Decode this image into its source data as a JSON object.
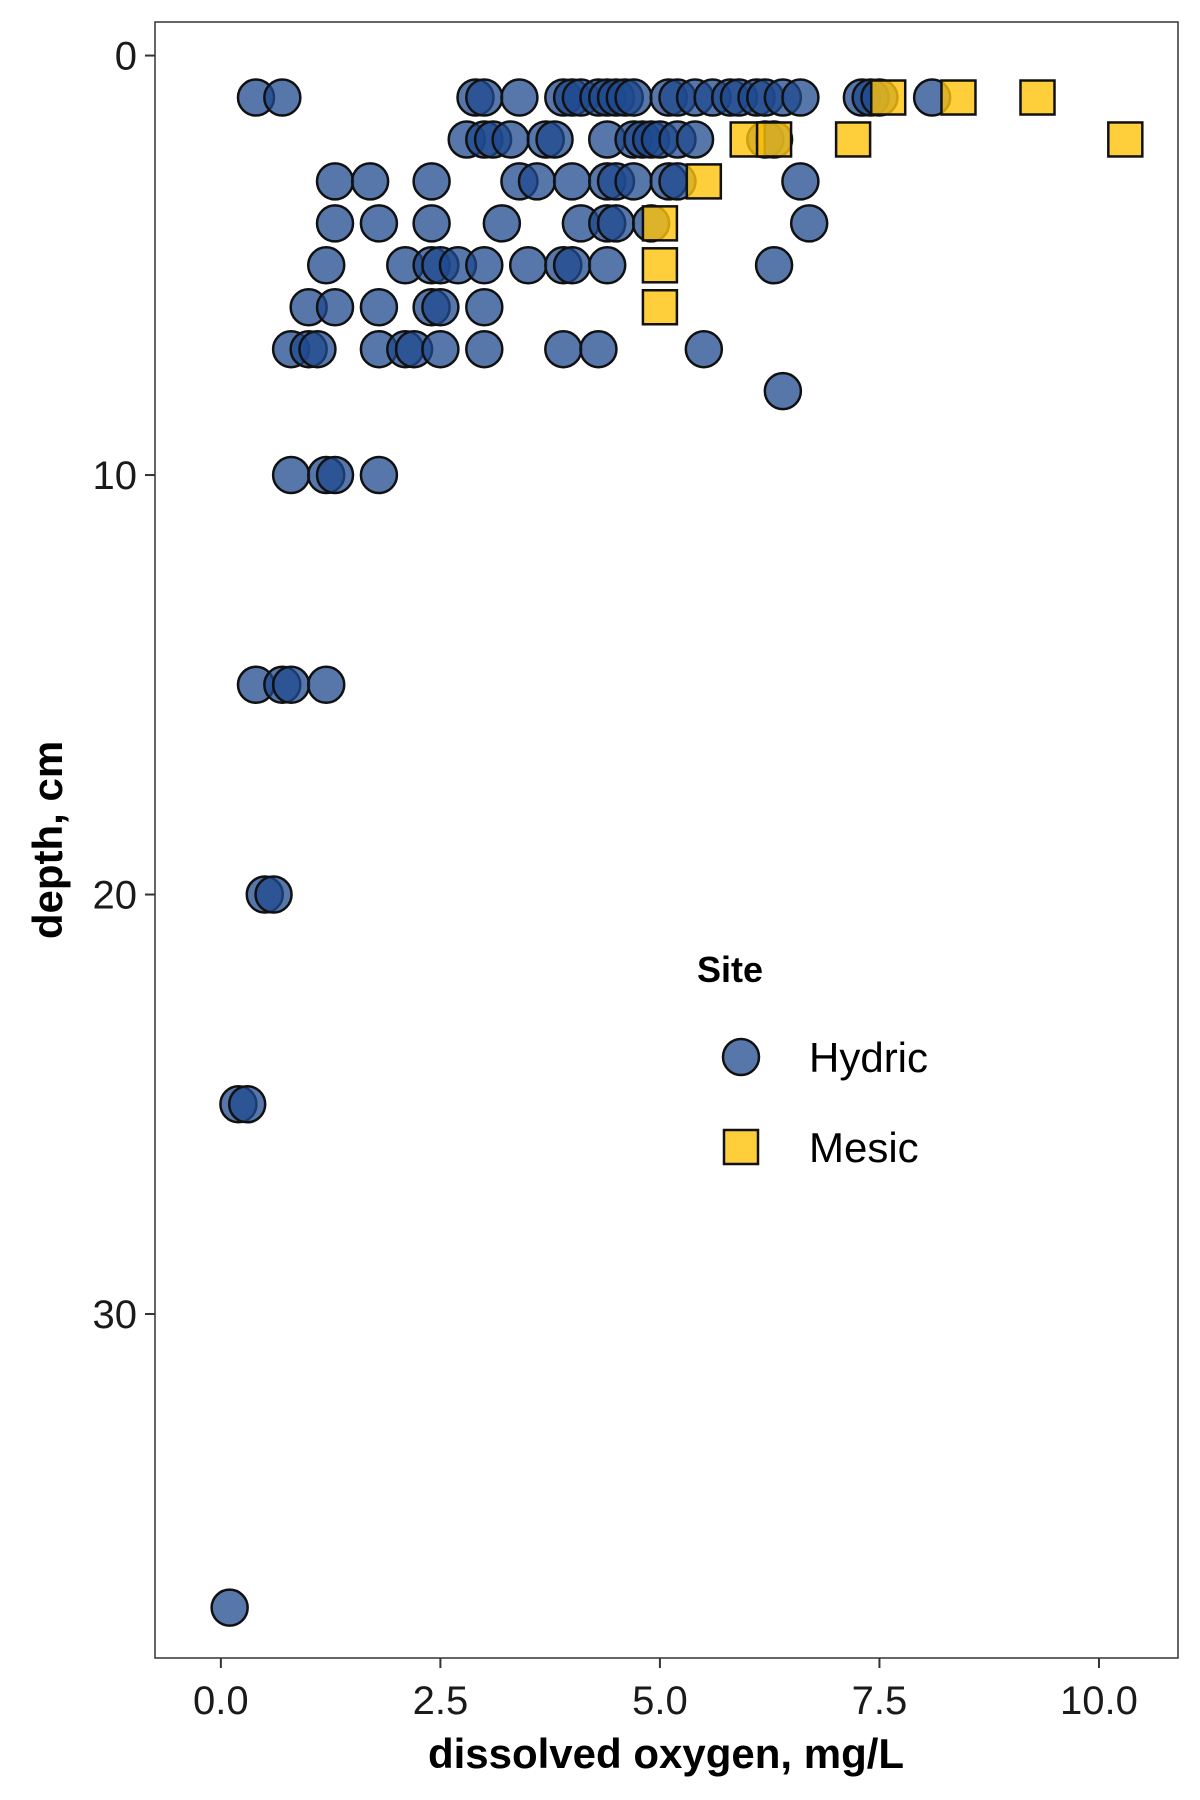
{
  "chart_data": {
    "type": "scatter",
    "title": "",
    "xlabel": "dissolved oxygen, mg/L",
    "ylabel": "depth, cm",
    "xlim": [
      -0.75,
      10.9
    ],
    "ylim": [
      -0.8,
      38.2
    ],
    "y_reversed": true,
    "x_ticks": [
      0,
      2.5,
      5,
      7.5,
      10
    ],
    "x_tick_labels": [
      "0.0",
      "2.5",
      "5.0",
      "7.5",
      "10.0"
    ],
    "y_ticks": [
      0,
      10,
      20,
      30
    ],
    "y_tick_labels": [
      "0",
      "10",
      "20",
      "30"
    ],
    "grid": false,
    "legend": {
      "title": "Site",
      "position": "right-center inside"
    },
    "series": [
      {
        "name": "Hydric",
        "marker": "circle",
        "color": "#1F4A8F",
        "points": [
          [
            0.4,
            1
          ],
          [
            0.7,
            1
          ],
          [
            2.9,
            1
          ],
          [
            3.0,
            1
          ],
          [
            3.4,
            1
          ],
          [
            3.9,
            1
          ],
          [
            4.0,
            1
          ],
          [
            4.1,
            1
          ],
          [
            4.3,
            1
          ],
          [
            4.4,
            1
          ],
          [
            4.5,
            1
          ],
          [
            4.6,
            1
          ],
          [
            4.7,
            1
          ],
          [
            5.1,
            1
          ],
          [
            5.2,
            1
          ],
          [
            5.4,
            1
          ],
          [
            5.6,
            1
          ],
          [
            5.8,
            1
          ],
          [
            5.9,
            1
          ],
          [
            6.1,
            1
          ],
          [
            6.2,
            1
          ],
          [
            6.4,
            1
          ],
          [
            6.6,
            1
          ],
          [
            7.3,
            1
          ],
          [
            7.4,
            1
          ],
          [
            7.5,
            1
          ],
          [
            8.1,
            1
          ],
          [
            2.8,
            2
          ],
          [
            3.0,
            2
          ],
          [
            3.1,
            2
          ],
          [
            3.3,
            2
          ],
          [
            3.7,
            2
          ],
          [
            3.8,
            2
          ],
          [
            4.4,
            2
          ],
          [
            4.7,
            2
          ],
          [
            4.8,
            2
          ],
          [
            4.9,
            2
          ],
          [
            5.0,
            2
          ],
          [
            5.2,
            2
          ],
          [
            5.4,
            2
          ],
          [
            6.2,
            2
          ],
          [
            6.3,
            2
          ],
          [
            1.3,
            3
          ],
          [
            1.7,
            3
          ],
          [
            2.4,
            3
          ],
          [
            3.4,
            3
          ],
          [
            3.6,
            3
          ],
          [
            4.0,
            3
          ],
          [
            4.4,
            3
          ],
          [
            4.5,
            3
          ],
          [
            4.7,
            3
          ],
          [
            5.1,
            3
          ],
          [
            5.2,
            3
          ],
          [
            6.6,
            3
          ],
          [
            1.3,
            4
          ],
          [
            1.8,
            4
          ],
          [
            2.4,
            4
          ],
          [
            3.2,
            4
          ],
          [
            4.1,
            4
          ],
          [
            4.4,
            4
          ],
          [
            4.5,
            4
          ],
          [
            4.9,
            4
          ],
          [
            6.7,
            4
          ],
          [
            1.2,
            5
          ],
          [
            2.1,
            5
          ],
          [
            2.4,
            5
          ],
          [
            2.5,
            5
          ],
          [
            2.7,
            5
          ],
          [
            3.0,
            5
          ],
          [
            3.5,
            5
          ],
          [
            3.9,
            5
          ],
          [
            4.0,
            5
          ],
          [
            4.4,
            5
          ],
          [
            6.3,
            5
          ],
          [
            1.0,
            6
          ],
          [
            1.3,
            6
          ],
          [
            1.8,
            6
          ],
          [
            2.4,
            6
          ],
          [
            2.5,
            6
          ],
          [
            3.0,
            6
          ],
          [
            0.8,
            7
          ],
          [
            1.0,
            7
          ],
          [
            1.1,
            7
          ],
          [
            1.8,
            7
          ],
          [
            2.1,
            7
          ],
          [
            2.2,
            7
          ],
          [
            2.5,
            7
          ],
          [
            3.0,
            7
          ],
          [
            3.9,
            7
          ],
          [
            4.3,
            7
          ],
          [
            5.5,
            7
          ],
          [
            6.4,
            8
          ],
          [
            0.8,
            10
          ],
          [
            1.2,
            10
          ],
          [
            1.3,
            10
          ],
          [
            1.8,
            10
          ],
          [
            0.4,
            15
          ],
          [
            0.7,
            15
          ],
          [
            0.8,
            15
          ],
          [
            1.2,
            15
          ],
          [
            0.5,
            20
          ],
          [
            0.6,
            20
          ],
          [
            0.2,
            25
          ],
          [
            0.3,
            25
          ],
          [
            0.1,
            37
          ]
        ]
      },
      {
        "name": "Mesic",
        "marker": "square",
        "color": "#FFC20A",
        "points": [
          [
            7.6,
            1
          ],
          [
            8.4,
            1
          ],
          [
            9.3,
            1
          ],
          [
            6.0,
            2
          ],
          [
            6.3,
            2
          ],
          [
            7.2,
            2
          ],
          [
            10.3,
            2
          ],
          [
            5.5,
            3
          ],
          [
            5.0,
            4
          ],
          [
            5.0,
            5
          ],
          [
            5.0,
            6
          ]
        ]
      }
    ]
  }
}
